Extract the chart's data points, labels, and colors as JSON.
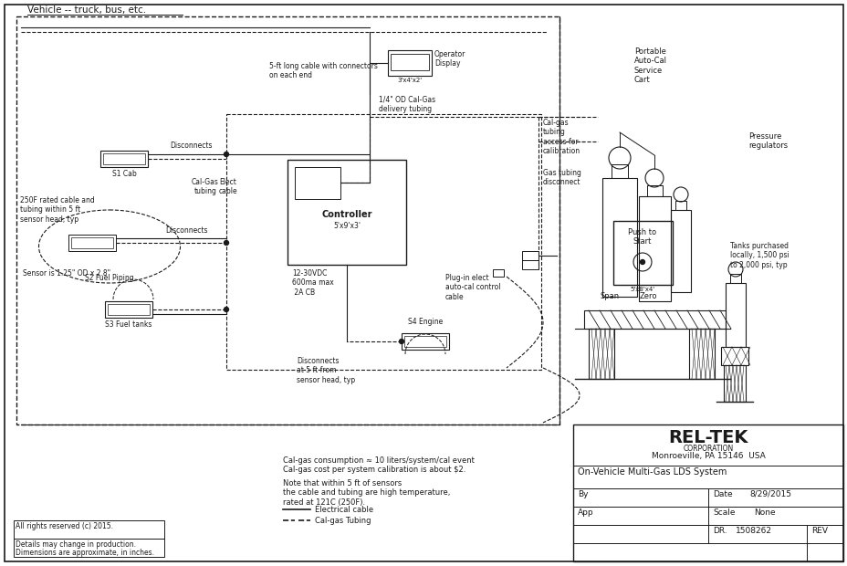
{
  "bg_color": "#ffffff",
  "lc": "#1a1a1a",
  "title": "Vehicle -- truck, bus, etc.",
  "company_name": "REL-TEK●",
  "company_sub": "CORPORATION",
  "company_city": "Monroeville, PA 15146  USA",
  "system_title": "On-Vehicle Multi-Gas LDS System",
  "by_label": "By",
  "date_label": "Date",
  "date_val": "8/29/2015",
  "app_label": "App",
  "scale_label": "Scale",
  "scale_val": "None",
  "dr_label": "DR.",
  "dr_val": "1508262",
  "rev_label": "REV",
  "copyright": "All rights reserved (c) 2015.",
  "details": "Details may change in production.\nDimensions are approximate, in inches.",
  "note1": "Cal-gas consumption ≈ 10 liters/system/cal event\nCal-gas cost per system calibration is about $2.",
  "note2": "Note that within 5 ft of sensors\nthe cable and tubing are high temperature,\nrated at 121C (250F).",
  "legend_solid": "Electrical cable",
  "legend_dash": "Cal-gas Tubing",
  "s1_label": "S1 Cab",
  "s2_label": "S2 Fuel Piping",
  "s3_label": "S3 Fuel tanks",
  "s4_label": "S4 Engine",
  "controller_label": "Controller",
  "controller_size": "5'x9'x3'",
  "power_label": "12-30VDC\n600ma max\n 2A CB",
  "operator_display": "Operator\nDisplay",
  "display_size": "3'x4'x2'",
  "cable_5ft": "5-ft long cable with connectors\non each end",
  "disconnects1": "Disconnects",
  "disconnects2": "Disconnects",
  "disconnects3": "Disconnects\nat 5 ft from\nsensor head, typ",
  "cal_gas_tubing": "Cal-Gas\ntubing",
  "elec_cable": "Elect\ncable",
  "calgas_delivery": "1/4\" OD Cal-Gas\ndelivery tubing",
  "calgas_access": "Cal-gas\ntubing\naccess for\ncalibration",
  "gas_disconnect": "Gas tubing\ndisconnect",
  "portable_cart": "Portable\nAuto-Cal\nService\nCart",
  "pressure_reg": "Pressure\nregulators",
  "push_start": "Push to\nStart",
  "cart_size": "5'x8'x4'",
  "span_label": "Span",
  "zero_label": "Zero",
  "sensor_size": "Sensor is 1.25\" OD x 2.8\"",
  "rated_label": "250F rated cable and\ntubing within 5 ft\nsensor head, typ",
  "plug_label": "Plug-in elect\nauto-cal control\ncable",
  "tanks_label": "Tanks purchased\nlocally, 1,500 psi\nto 2,000 psi, typ"
}
